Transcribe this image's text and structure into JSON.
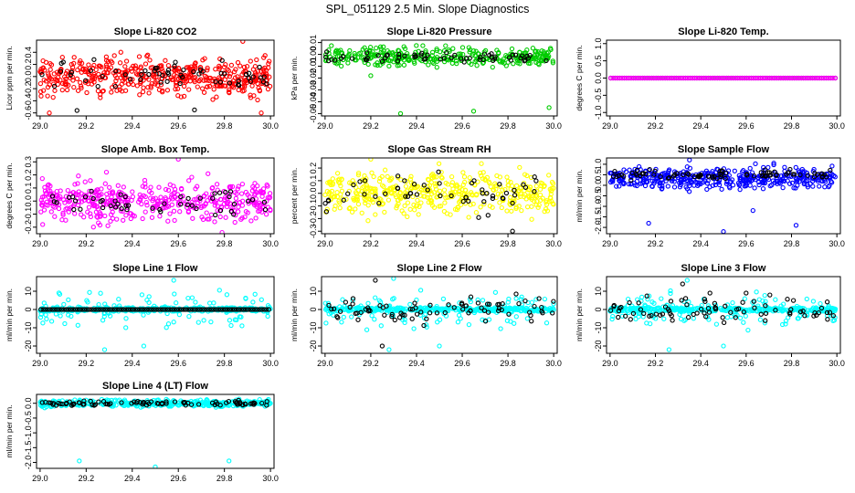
{
  "figure": {
    "title": "SPL_051129  2.5 Min. Slope Diagnostics",
    "x_ticks": [
      "29.0",
      "29.2",
      "29.4",
      "29.6",
      "29.8",
      "30.0"
    ],
    "x_tick_values": [
      29.0,
      29.2,
      29.4,
      29.6,
      29.8,
      30.0
    ]
  },
  "chart_data": [
    {
      "type": "scatter",
      "title": "Slope Li-820 CO2",
      "ylabel": "Licor ppm per min.",
      "xlim": [
        29.0,
        30.0
      ],
      "ylim": [
        -0.65,
        0.6
      ],
      "y_ticks": [
        -0.6,
        -0.4,
        -0.2,
        0.0,
        0.2,
        0.4
      ],
      "y_tick_labels": [
        "-0.6",
        "-0.4",
        "-0.2",
        "0.0",
        "0.2",
        "0.4"
      ],
      "series": [
        {
          "color": "#ff0000",
          "count": 460,
          "typical": [
            -0.4,
            0.4
          ],
          "outliers": [
            [
              29.04,
              -0.6
            ],
            [
              29.88,
              0.58
            ],
            [
              29.96,
              -0.6
            ]
          ]
        },
        {
          "color": "#000000",
          "count": 60,
          "typical": [
            -0.3,
            0.3
          ],
          "outliers": [
            [
              29.16,
              -0.56
            ],
            [
              29.67,
              -0.55
            ]
          ]
        }
      ]
    },
    {
      "type": "scatter",
      "title": "Slope Li-820 Pressure",
      "ylabel": "kPa per min.",
      "xlim": [
        29.0,
        30.0
      ],
      "ylim": [
        -0.052,
        0.012
      ],
      "y_ticks": [
        -0.05,
        -0.04,
        -0.03,
        -0.02,
        -0.01,
        0.0,
        0.01
      ],
      "y_tick_labels": [
        "-0.05",
        "-0.04",
        "-0.03",
        "-0.02",
        "-0.01",
        "0.00",
        "0.01"
      ],
      "series": [
        {
          "color": "#00cc00",
          "count": 320,
          "typical": [
            -0.012,
            0.008
          ],
          "outliers": [
            [
              29.33,
              -0.05
            ],
            [
              29.65,
              -0.048
            ],
            [
              29.98,
              -0.045
            ],
            [
              29.2,
              -0.018
            ]
          ]
        },
        {
          "color": "#000000",
          "count": 60,
          "typical": [
            -0.008,
            0.004
          ],
          "outliers": []
        }
      ]
    },
    {
      "type": "scatter",
      "title": "Slope Li-820 Temp.",
      "ylabel": "degrees C per min.",
      "xlim": [
        29.0,
        30.0
      ],
      "ylim": [
        -1.1,
        1.1
      ],
      "y_ticks": [
        -1.0,
        -0.5,
        0.0,
        0.5,
        1.0
      ],
      "y_tick_labels": [
        "-1.0",
        "-0.5",
        "0.0",
        "0.5",
        "1.0"
      ],
      "series": [
        {
          "color": "#000000",
          "count": 100,
          "typical": [
            0.0,
            0.0
          ],
          "outliers": [],
          "regular": true
        },
        {
          "color": "#ff00ff",
          "count": 100,
          "typical": [
            0.0,
            0.0
          ],
          "outliers": [],
          "regular": true
        }
      ]
    },
    {
      "type": "scatter",
      "title": "Slope Amb. Box Temp.",
      "ylabel": "degrees C per min.",
      "xlim": [
        29.0,
        30.0
      ],
      "ylim": [
        -0.25,
        0.33
      ],
      "y_ticks": [
        -0.2,
        -0.1,
        0.0,
        0.1,
        0.2,
        0.3
      ],
      "y_tick_labels": [
        "-0.2",
        "-0.1",
        "0.0",
        "0.1",
        "0.2",
        "0.3"
      ],
      "series": [
        {
          "color": "#ff00ff",
          "count": 440,
          "typical": [
            -0.2,
            0.2
          ],
          "outliers": [
            [
              29.6,
              0.32
            ],
            [
              29.79,
              -0.24
            ]
          ]
        },
        {
          "color": "#000000",
          "count": 50,
          "typical": [
            -0.12,
            0.12
          ],
          "outliers": []
        }
      ]
    },
    {
      "type": "scatter",
      "title": "Slope Gas Stream RH",
      "ylabel": "percent per min.",
      "xlim": [
        29.0,
        30.0
      ],
      "ylim": [
        -0.32,
        0.28
      ],
      "y_ticks": [
        -0.3,
        -0.2,
        -0.1,
        0.0,
        0.1,
        0.2
      ],
      "y_tick_labels": [
        "-0.3",
        "-0.2",
        "-0.1",
        "0.0",
        "0.1",
        "0.2"
      ],
      "series": [
        {
          "color": "#ffff00",
          "count": 440,
          "typical": [
            -0.22,
            0.22
          ],
          "outliers": [
            [
              29.2,
              0.27
            ]
          ]
        },
        {
          "color": "#000000",
          "count": 55,
          "typical": [
            -0.2,
            0.2
          ],
          "outliers": [
            [
              29.82,
              -0.3
            ]
          ]
        }
      ]
    },
    {
      "type": "scatter",
      "title": "Slope Sample Flow",
      "ylabel": "ml/min per min.",
      "xlim": [
        29.0,
        30.0
      ],
      "ylim": [
        -2.3,
        1.3
      ],
      "y_ticks": [
        -2.0,
        -1.5,
        -1.0,
        -0.5,
        0.0,
        0.5,
        1.0
      ],
      "y_tick_labels": [
        "-2.0",
        "-1.5",
        "-1.0",
        "-0.5",
        "0.0",
        "0.5",
        "1.0"
      ],
      "series": [
        {
          "color": "#0000ff",
          "count": 420,
          "typical": [
            -0.3,
            1.0
          ],
          "outliers": [
            [
              29.17,
              -1.8
            ],
            [
              29.5,
              -2.2
            ],
            [
              29.82,
              -1.9
            ],
            [
              29.63,
              -1.2
            ],
            [
              29.35,
              1.2
            ]
          ]
        },
        {
          "color": "#000000",
          "count": 80,
          "typical": [
            0.2,
            0.8
          ],
          "outliers": []
        }
      ]
    },
    {
      "type": "scatter",
      "title": "Slope Line 1 Flow",
      "ylabel": "ml/min per min.",
      "xlim": [
        29.0,
        30.0
      ],
      "ylim": [
        -24,
        18
      ],
      "y_ticks": [
        -20,
        -10,
        0,
        10
      ],
      "y_tick_labels": [
        "-20",
        "-10",
        "0",
        "10"
      ],
      "series": [
        {
          "color": "#00ffff",
          "count": 420,
          "typical": [
            -12,
            12
          ],
          "outliers": [
            [
              29.28,
              -22
            ],
            [
              29.58,
              16
            ],
            [
              29.45,
              -20
            ]
          ],
          "core": [
            [
              -1,
              1,
              0.75
            ]
          ]
        },
        {
          "color": "#000000",
          "count": 100,
          "typical": [
            0,
            0
          ],
          "outliers": [],
          "regular": true
        }
      ]
    },
    {
      "type": "scatter",
      "title": "Slope Line 2 Flow",
      "ylabel": "ml/min per min.",
      "xlim": [
        29.0,
        30.0
      ],
      "ylim": [
        -24,
        18
      ],
      "y_ticks": [
        -20,
        -10,
        0,
        10
      ],
      "y_tick_labels": [
        "-20",
        "-10",
        "0",
        "10"
      ],
      "series": [
        {
          "color": "#00ffff",
          "count": 420,
          "typical": [
            -12,
            12
          ],
          "outliers": [
            [
              29.28,
              -22
            ],
            [
              29.3,
              17
            ],
            [
              29.5,
              -20
            ]
          ],
          "core": [
            [
              -1,
              1,
              0.7
            ]
          ]
        },
        {
          "color": "#000000",
          "count": 80,
          "typical": [
            -10,
            10
          ],
          "outliers": [
            [
              29.22,
              16
            ],
            [
              29.25,
              -20
            ]
          ]
        }
      ]
    },
    {
      "type": "scatter",
      "title": "Slope Line 3 Flow",
      "ylabel": "ml/min per min.",
      "xlim": [
        29.0,
        30.0
      ],
      "ylim": [
        -24,
        18
      ],
      "y_ticks": [
        -20,
        -10,
        0,
        10
      ],
      "y_tick_labels": [
        "-20",
        "-10",
        "0",
        "10"
      ],
      "series": [
        {
          "color": "#00ffff",
          "count": 420,
          "typical": [
            -12,
            12
          ],
          "outliers": [
            [
              29.26,
              -22
            ],
            [
              29.34,
              16
            ],
            [
              29.5,
              -20
            ]
          ],
          "core": [
            [
              -1,
              1,
              0.7
            ]
          ]
        },
        {
          "color": "#000000",
          "count": 80,
          "typical": [
            -10,
            10
          ],
          "outliers": [
            [
              29.32,
              14
            ],
            [
              29.6,
              9
            ]
          ]
        }
      ]
    },
    {
      "type": "scatter",
      "title": "Slope Line 4 (LT) Flow",
      "ylabel": "ml/min per min.",
      "xlim": [
        29.0,
        30.0
      ],
      "ylim": [
        -2.2,
        0.3
      ],
      "y_ticks": [
        -2.0,
        -1.5,
        -1.0,
        -0.5,
        0.0
      ],
      "y_tick_labels": [
        "-2.0",
        "-1.5",
        "-1.0",
        "-0.5",
        "0.0"
      ],
      "series": [
        {
          "color": "#00ffff",
          "count": 420,
          "typical": [
            -0.15,
            0.15
          ],
          "outliers": [
            [
              29.17,
              -1.95
            ],
            [
              29.5,
              -2.15
            ],
            [
              29.82,
              -1.95
            ]
          ]
        },
        {
          "color": "#000000",
          "count": 90,
          "typical": [
            -0.1,
            0.1
          ],
          "outliers": []
        }
      ]
    }
  ]
}
